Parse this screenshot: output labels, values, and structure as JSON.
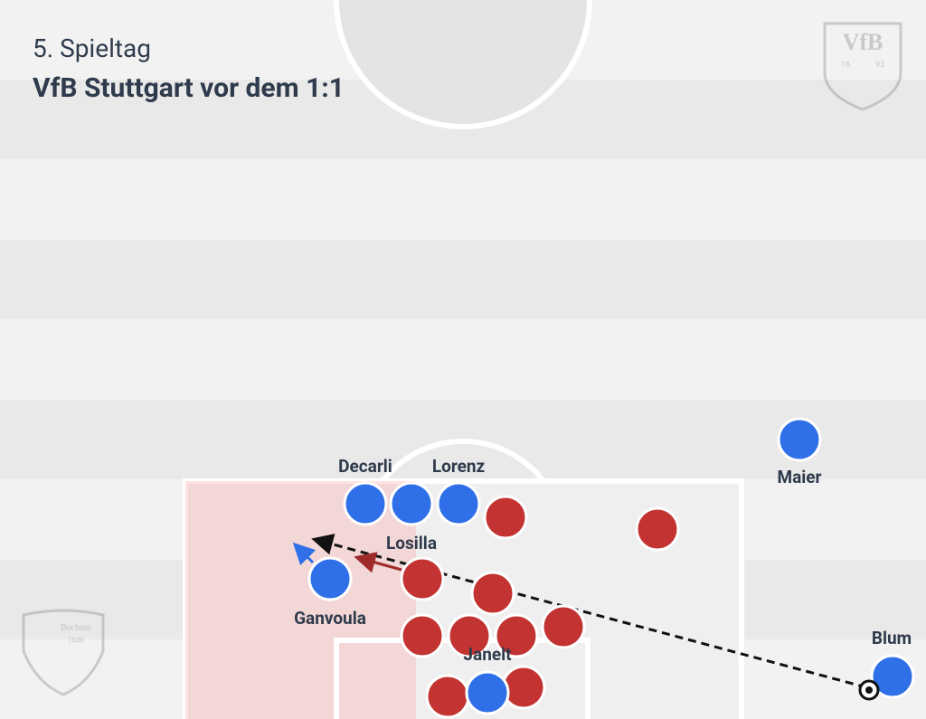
{
  "header": {
    "subtitle": "5. Spieltag",
    "title": "VfB Stuttgart vor dem 1:1"
  },
  "players": [
    "Decarli",
    "Lorenz",
    "Maier",
    "Losilla",
    "Ganvoula",
    "Janelt",
    "Blum"
  ],
  "logos": {
    "home": {
      "name": "VfB",
      "year_left": "18",
      "year_right": "93"
    },
    "away": {
      "name": "Bochum",
      "year": "1848"
    }
  }
}
